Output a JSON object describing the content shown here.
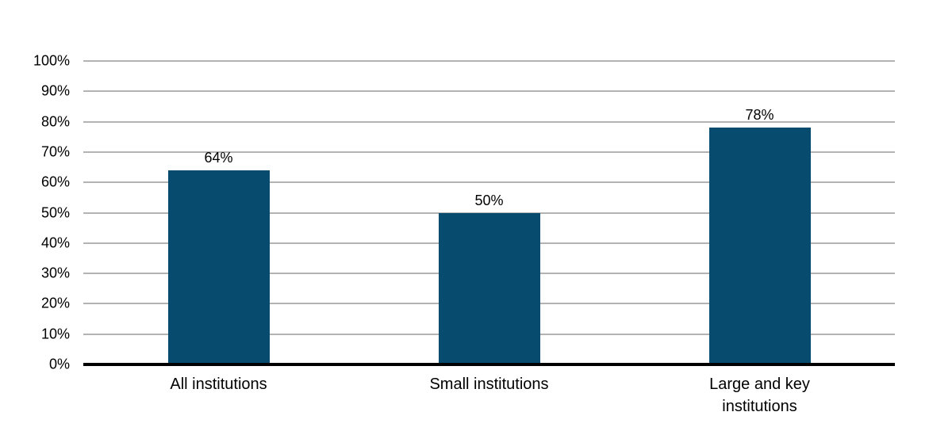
{
  "chart_data": {
    "type": "bar",
    "title": "",
    "xlabel": "",
    "ylabel": "",
    "categories": [
      "All institutions",
      "Small institutions",
      "Large and key institutions"
    ],
    "values": [
      64,
      50,
      78
    ],
    "value_labels": [
      "64%",
      "50%",
      "78%"
    ],
    "ylim": [
      0,
      100
    ],
    "ytick_values": [
      0,
      10,
      20,
      30,
      40,
      50,
      60,
      70,
      80,
      90,
      100
    ],
    "ytick_labels": [
      "0%",
      "10%",
      "20%",
      "30%",
      "40%",
      "50%",
      "60%",
      "70%",
      "80%",
      "90%",
      "100%"
    ],
    "grid": true,
    "legend": "none",
    "colors": {
      "bar": "#074b6e",
      "gridline": "#b3b3b3",
      "axis": "#000000",
      "text": "#000000"
    }
  }
}
